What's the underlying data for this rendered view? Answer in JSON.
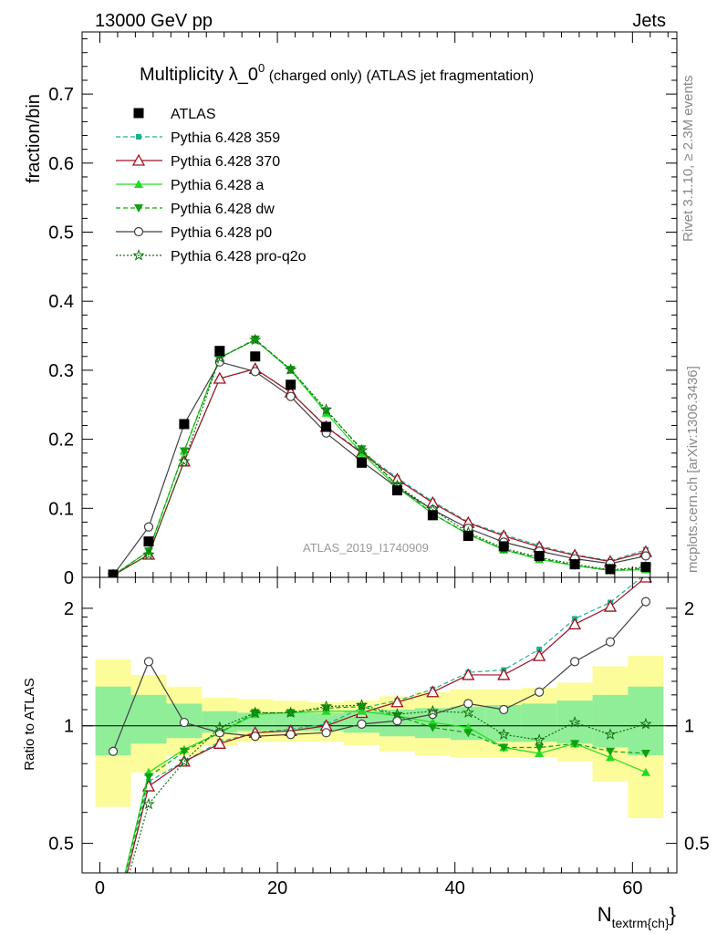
{
  "header": {
    "left": "13000 GeV pp",
    "right": "Jets"
  },
  "side_labels": {
    "rivet": "Rivet 3.1.10, ≥ 2.3M events",
    "mcplots": "mcplots.cern.ch [arXiv:1306.3436]"
  },
  "watermark": "ATLAS_2019_I1740909",
  "colors": {
    "atlas": "#000000",
    "p359": "#20b090",
    "p370": "#a01020",
    "pa": "#20dd20",
    "pdw": "#10a010",
    "pp0": "#404040",
    "pq2o": "#107010",
    "band_inner": "#90ee98",
    "band_outer": "#fcfc9a"
  },
  "chart_data": [
    {
      "type": "line",
      "title": "Multiplicity λ_0",
      "title_sup": "0",
      "title_suffix": " (charged only) (ATLAS jet fragmentation)",
      "ylabel": "fraction/bin",
      "xlim": [
        -2,
        65
      ],
      "ylim": [
        0,
        0.79
      ],
      "yticks": [
        "0",
        "0.1",
        "0.2",
        "0.3",
        "0.4",
        "0.5",
        "0.6",
        "0.7"
      ],
      "x": [
        1.5,
        5.5,
        9.5,
        13.5,
        17.5,
        21.5,
        25.5,
        29.5,
        33.5,
        37.5,
        41.5,
        45.5,
        49.5,
        53.5,
        57.5,
        61.5
      ],
      "series": [
        {
          "name": "ATLAS",
          "values": [
            0.004,
            0.052,
            0.222,
            0.328,
            0.32,
            0.279,
            0.218,
            0.166,
            0.126,
            0.09,
            0.06,
            0.045,
            0.031,
            0.019,
            0.012,
            0.015
          ]
        },
        {
          "name": "Pythia 6.428 359",
          "values": [
            0.003,
            0.033,
            0.168,
            0.288,
            0.302,
            0.268,
            0.218,
            0.182,
            0.144,
            0.11,
            0.08,
            0.062,
            0.046,
            0.033,
            0.024,
            0.04
          ]
        },
        {
          "name": "Pythia 6.428 370",
          "values": [
            0.003,
            0.033,
            0.168,
            0.288,
            0.302,
            0.268,
            0.218,
            0.18,
            0.142,
            0.108,
            0.079,
            0.06,
            0.044,
            0.032,
            0.023,
            0.037
          ]
        },
        {
          "name": "Pythia 6.428 a",
          "values": [
            0.003,
            0.038,
            0.183,
            0.318,
            0.344,
            0.3,
            0.238,
            0.18,
            0.13,
            0.092,
            0.062,
            0.04,
            0.026,
            0.017,
            0.01,
            0.011
          ]
        },
        {
          "name": "Pythia 6.428 dw",
          "values": [
            0.003,
            0.038,
            0.183,
            0.318,
            0.345,
            0.301,
            0.241,
            0.186,
            0.133,
            0.092,
            0.063,
            0.04,
            0.028,
            0.017,
            0.01,
            0.013
          ]
        },
        {
          "name": "Pythia 6.428 p0",
          "values": [
            0.003,
            0.073,
            0.222,
            0.312,
            0.298,
            0.262,
            0.209,
            0.168,
            0.13,
            0.098,
            0.071,
            0.051,
            0.038,
            0.027,
            0.02,
            0.031
          ]
        },
        {
          "name": "Pythia 6.428 pro-q2o",
          "values": [
            0.003,
            0.033,
            0.168,
            0.318,
            0.344,
            0.301,
            0.243,
            0.184,
            0.133,
            0.098,
            0.065,
            0.042,
            0.029,
            0.019,
            0.011,
            0.015
          ]
        }
      ]
    },
    {
      "type": "line",
      "ylabel": "Ratio to ATLAS",
      "xlabel": "N",
      "xlabel_sub": "textrm{ch}",
      "xlabel_close": "}",
      "ylog": true,
      "ylim": [
        0.42,
        2.4
      ],
      "yticks": [
        "0.5",
        "1",
        "2"
      ],
      "xticks": [
        "0",
        "20",
        "40",
        "60"
      ],
      "x": [
        1.5,
        5.5,
        9.5,
        13.5,
        17.5,
        21.5,
        25.5,
        29.5,
        33.5,
        37.5,
        41.5,
        45.5,
        49.5,
        53.5,
        57.5,
        61.5
      ],
      "band_edges": [
        -0.5,
        3.5,
        7.5,
        11.5,
        15.5,
        19.5,
        23.5,
        27.5,
        31.5,
        35.5,
        39.5,
        43.5,
        47.5,
        51.5,
        55.5,
        59.5,
        63.5
      ],
      "band_inner": [
        [
          0.84,
          1.26
        ],
        [
          0.9,
          1.2
        ],
        [
          0.93,
          1.14
        ],
        [
          0.96,
          1.09
        ],
        [
          0.97,
          1.08
        ],
        [
          0.97,
          1.08
        ],
        [
          0.97,
          1.08
        ],
        [
          0.96,
          1.09
        ],
        [
          0.94,
          1.1
        ],
        [
          0.93,
          1.11
        ],
        [
          0.92,
          1.12
        ],
        [
          0.91,
          1.13
        ],
        [
          0.91,
          1.14
        ],
        [
          0.9,
          1.16
        ],
        [
          0.88,
          1.2
        ],
        [
          0.84,
          1.26
        ]
      ],
      "band_outer": [
        [
          0.62,
          1.48
        ],
        [
          0.76,
          1.35
        ],
        [
          0.84,
          1.26
        ],
        [
          0.89,
          1.18
        ],
        [
          0.91,
          1.17
        ],
        [
          0.91,
          1.16
        ],
        [
          0.91,
          1.15
        ],
        [
          0.89,
          1.16
        ],
        [
          0.86,
          1.19
        ],
        [
          0.84,
          1.22
        ],
        [
          0.83,
          1.24
        ],
        [
          0.83,
          1.24
        ],
        [
          0.83,
          1.25
        ],
        [
          0.81,
          1.29
        ],
        [
          0.72,
          1.42
        ],
        [
          0.58,
          1.51
        ]
      ],
      "series": [
        {
          "name": "Pythia 6.428 359",
          "values": [
            0.3,
            0.72,
            0.81,
            0.91,
            0.96,
            0.98,
            1.01,
            1.11,
            1.16,
            1.24,
            1.37,
            1.39,
            1.57,
            1.88,
            2.07,
            2.45
          ]
        },
        {
          "name": "Pythia 6.428 370",
          "values": [
            0.3,
            0.7,
            0.81,
            0.9,
            0.96,
            0.97,
            1.0,
            1.08,
            1.15,
            1.22,
            1.35,
            1.35,
            1.51,
            1.82,
            2.02,
            2.4
          ]
        },
        {
          "name": "Pythia 6.428 a",
          "values": [
            0.31,
            0.76,
            0.87,
            0.96,
            1.07,
            1.08,
            1.09,
            1.09,
            1.06,
            1.02,
            0.99,
            0.88,
            0.85,
            0.9,
            0.83,
            0.76
          ]
        },
        {
          "name": "Pythia 6.428 dw",
          "values": [
            0.31,
            0.74,
            0.86,
            0.96,
            1.08,
            1.08,
            1.11,
            1.12,
            1.06,
            0.99,
            0.96,
            0.88,
            0.88,
            0.9,
            0.86,
            0.85
          ]
        },
        {
          "name": "Pythia 6.428 p0",
          "values": [
            0.86,
            1.46,
            1.02,
            0.96,
            0.94,
            0.95,
            0.96,
            1.01,
            1.03,
            1.07,
            1.14,
            1.1,
            1.22,
            1.46,
            1.64,
            2.08
          ]
        },
        {
          "name": "Pythia 6.428 pro-q2o",
          "values": [
            0.3,
            0.63,
            0.81,
            0.99,
            1.08,
            1.08,
            1.12,
            1.13,
            1.07,
            1.09,
            1.08,
            0.95,
            0.92,
            1.02,
            0.95,
            1.01
          ]
        }
      ]
    }
  ]
}
